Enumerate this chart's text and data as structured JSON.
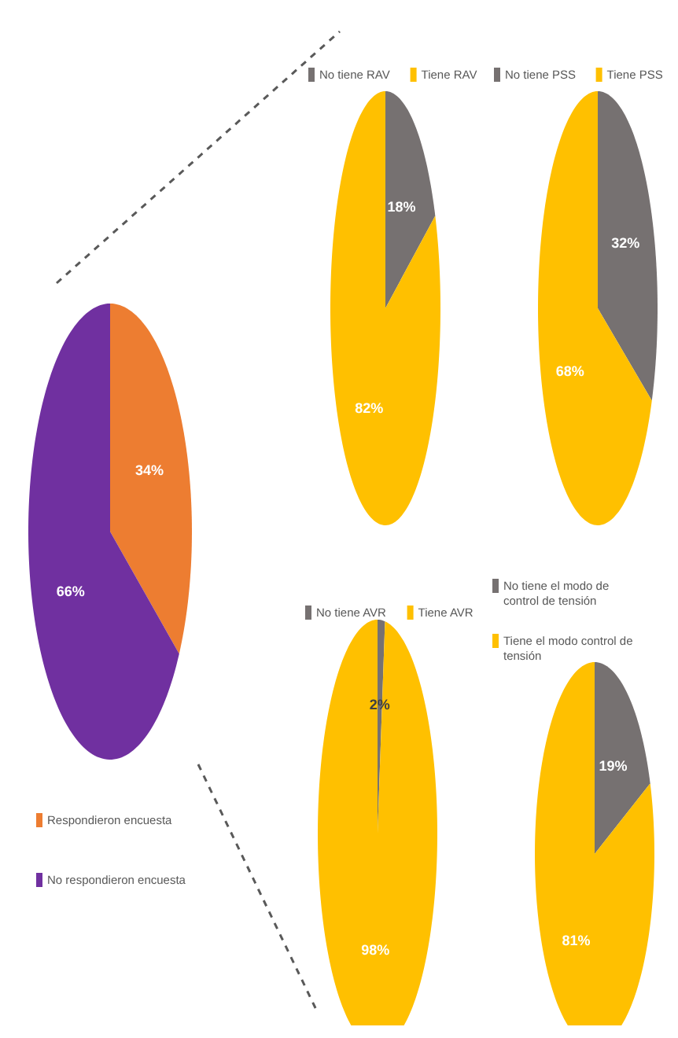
{
  "chart_data": [
    {
      "type": "pie",
      "categories": [
        "Respondieron encuesta",
        "No respondieron encuesta"
      ],
      "values": [
        34,
        66
      ],
      "colors": [
        "#ed7d31",
        "#7030a0"
      ],
      "value_labels": [
        "34%",
        "66%"
      ],
      "legend": "bottom"
    },
    {
      "type": "pie",
      "categories": [
        "No tiene RAV",
        "Tiene RAV"
      ],
      "values": [
        18,
        82
      ],
      "colors": [
        "#767171",
        "#ffc000"
      ],
      "value_labels": [
        "18%",
        "82%"
      ],
      "legend": "top"
    },
    {
      "type": "pie",
      "categories": [
        "No tiene PSS",
        "Tiene PSS"
      ],
      "values": [
        32,
        68
      ],
      "colors": [
        "#767171",
        "#ffc000"
      ],
      "value_labels": [
        "32%",
        "68%"
      ],
      "legend": "top"
    },
    {
      "type": "pie",
      "categories": [
        "No tiene AVR",
        "Tiene AVR"
      ],
      "values": [
        2,
        98
      ],
      "colors": [
        "#767171",
        "#ffc000"
      ],
      "value_labels": [
        "2%",
        "98%"
      ],
      "legend": "top"
    },
    {
      "type": "pie",
      "categories": [
        "No tiene el modo de control de tensión",
        "Tiene el modo control de tensión"
      ],
      "values": [
        19,
        81
      ],
      "colors": [
        "#767171",
        "#ffc000"
      ],
      "value_labels": [
        "19%",
        "81%"
      ],
      "legend": "top"
    }
  ]
}
